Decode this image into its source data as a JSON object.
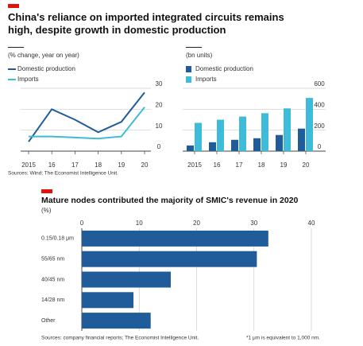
{
  "header": {
    "title": "China's reliance on imported integrated circuits remains high, despite growth in domestic production",
    "source": "Sources: Wind; The Economist Intelligence Unit."
  },
  "chart_data": [
    {
      "type": "line",
      "subtitle": "(% change, year on year)",
      "categories": [
        "2015",
        "16",
        "17",
        "18",
        "19",
        "20"
      ],
      "series": [
        {
          "name": "Domestic production",
          "color": "#1f5c99",
          "values": [
            4.5,
            20,
            15,
            9,
            14,
            28
          ]
        },
        {
          "name": "Imports",
          "color": "#3ebbd8",
          "values": [
            7,
            7,
            6.5,
            6,
            7,
            21
          ]
        }
      ],
      "ylim": [
        0,
        30
      ],
      "yticks": [
        0,
        10,
        20,
        30
      ],
      "grid": true
    },
    {
      "type": "bar",
      "subtitle": "(bn units)",
      "categories": [
        "2015",
        "16",
        "17",
        "18",
        "19",
        "20"
      ],
      "series": [
        {
          "name": "Domestic production",
          "color": "#1f5c99",
          "values": [
            54,
            85,
            108,
            123,
            154,
            215
          ]
        },
        {
          "name": "Imports",
          "color": "#3ebbd8",
          "values": [
            270,
            300,
            330,
            362,
            408,
            508
          ]
        }
      ],
      "ylim": [
        0,
        600
      ],
      "yticks": [
        0,
        200,
        400,
        600
      ],
      "grid": true
    },
    {
      "type": "hbar",
      "title": "Mature nodes contributed the majority of SMIC's revenue in 2020",
      "subtitle": "(%)",
      "categories": [
        "0.15/0.18 μm",
        "55/65 nm",
        "40/45 nm",
        "14/28 nm",
        "Other"
      ],
      "values": [
        32.5,
        30.5,
        15.5,
        9,
        12
      ],
      "color": "#1f5c99",
      "xlim": [
        0,
        40
      ],
      "xticks": [
        0,
        10,
        20,
        30,
        40
      ],
      "grid": true,
      "source": "Sources: company financial reports; The Economist Intelligence Unit.",
      "note": "*1 μm is equivalent to 1,000 nm."
    }
  ]
}
